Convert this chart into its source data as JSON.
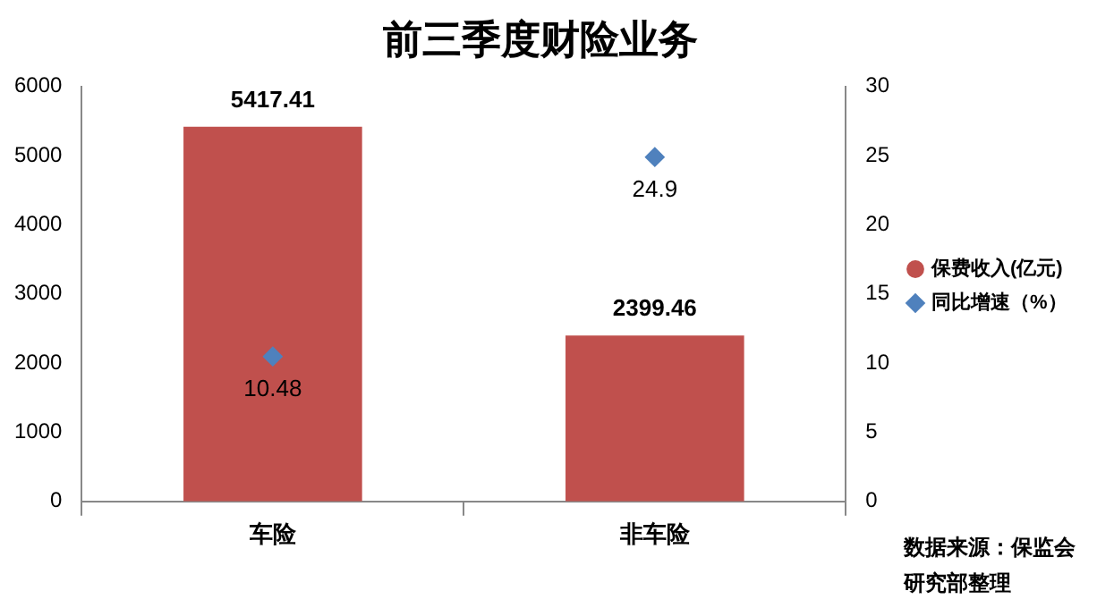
{
  "chart_data": {
    "type": "bar",
    "title": "前三季度财险业务",
    "categories": [
      "车险",
      "非车险"
    ],
    "series": [
      {
        "name": "保费收入(亿元)",
        "color": "#c0504d",
        "values": [
          5417.41,
          2399.46
        ]
      },
      {
        "name": "同比增速（%）",
        "type": "scatter",
        "axis": "y2",
        "color": "#4f81bd",
        "values": [
          10.48,
          24.9
        ]
      }
    ],
    "ylim": [
      0,
      6000
    ],
    "yticks": [
      0,
      1000,
      2000,
      3000,
      4000,
      5000,
      6000
    ],
    "y2lim": [
      0,
      30
    ],
    "y2ticks": [
      0,
      5,
      10,
      15,
      20,
      25,
      30
    ],
    "legend": "right",
    "marker": "diamond",
    "data_labels": true,
    "annotations": [
      "数据来源：保监会",
      "研究部整理"
    ]
  }
}
